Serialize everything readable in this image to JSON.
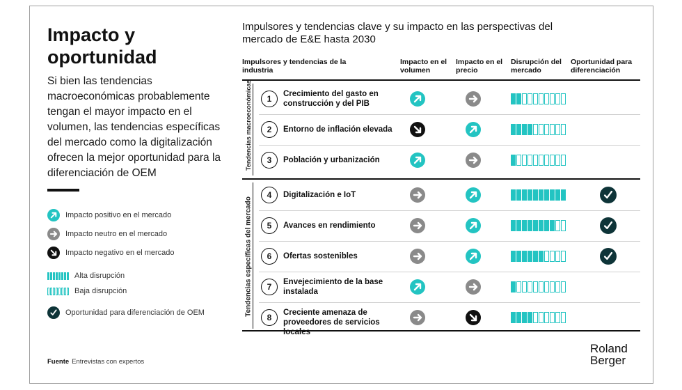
{
  "title": "Impacto y oportunidad",
  "intro": "Si bien las tendencias macroeconómicas probablemente tengan el mayor impacto en el volumen, las tendencias específicas del mercado como la digitalización ofrecen la mejor oportunidad para la diferenciación de OEM",
  "legend": {
    "positive": "Impacto positivo en el mercado",
    "neutral": "Impacto neutro en el mercado",
    "negative": "Impacto negativo en el mercado",
    "high": "Alta disrupción",
    "low": "Baja disrupción",
    "opportunity": "Oportunidad para diferenciación de OEM"
  },
  "source": {
    "label": "Fuente",
    "text": "Entrevistas con expertos"
  },
  "chart_title": "Impulsores y tendencias clave y su impacto en las perspectivas del mercado de E&E hasta 2030",
  "columns": {
    "drivers": "Impulsores y tendencias de la industria",
    "volume": "Impacto en el volumen",
    "price": "Impacto en el precio",
    "disruption": "Disrupción del mercado",
    "opportunity": "Oportunidad para diferenciación"
  },
  "groups": {
    "macro": "Tendencias macroeconómicas",
    "market": "Tendencias específicas del mercado"
  },
  "colors": {
    "positive": "#23c4c2",
    "neutral": "#8a8a8a",
    "negative": "#111111",
    "opportunity": "#0e3438"
  },
  "disruption_max": 10,
  "rows": [
    {
      "num": "1",
      "label": "Crecimiento del gasto en construcción y del PIB",
      "volume": "positive",
      "price": "neutral",
      "disruption": 2,
      "opportunity": false
    },
    {
      "num": "2",
      "label": "Entorno de inflación elevada",
      "volume": "negative",
      "price": "positive",
      "disruption": 4,
      "opportunity": false
    },
    {
      "num": "3",
      "label": "Población y urbanización",
      "volume": "positive",
      "price": "neutral",
      "disruption": 1,
      "opportunity": false
    },
    {
      "num": "4",
      "label": "Digitalización e IoT",
      "volume": "neutral",
      "price": "positive",
      "disruption": 10,
      "opportunity": true
    },
    {
      "num": "5",
      "label": "Avances en rendimiento",
      "volume": "neutral",
      "price": "positive",
      "disruption": 8,
      "opportunity": true
    },
    {
      "num": "6",
      "label": "Ofertas sostenibles",
      "volume": "neutral",
      "price": "positive",
      "disruption": 6,
      "opportunity": true
    },
    {
      "num": "7",
      "label": "Envejecimiento de la base instalada",
      "volume": "positive",
      "price": "neutral",
      "disruption": 1,
      "opportunity": false
    },
    {
      "num": "8",
      "label": "Creciente amenaza de proveedores de servicios locales",
      "volume": "neutral",
      "price": "negative",
      "disruption": 4,
      "opportunity": false
    }
  ],
  "logo": {
    "line1": "Roland",
    "line2": "Berger"
  }
}
